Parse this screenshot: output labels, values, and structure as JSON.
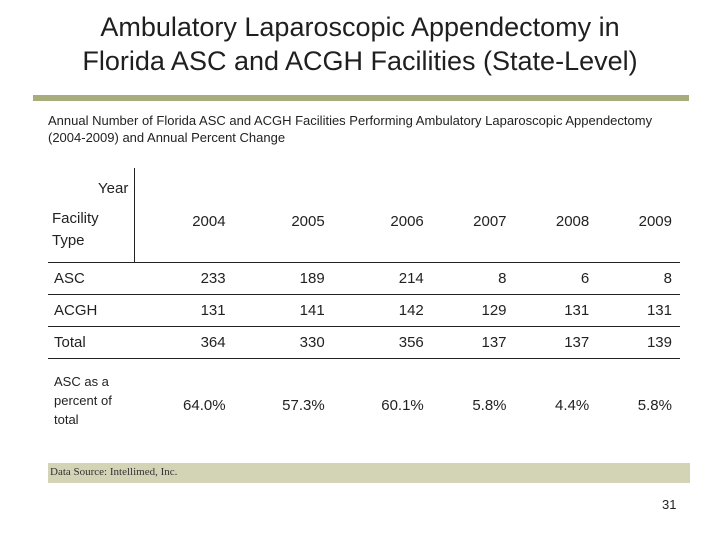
{
  "slide": {
    "title_line1": "Ambulatory Laparoscopic Appendectomy in",
    "title_line2": "Florida ASC and ACGH Facilities (State-Level)",
    "subtitle": "Annual Number of Florida ASC and ACGH Facilities Performing Ambulatory Laparoscopic Appendectomy (2004-2009) and Annual Percent Change",
    "source": "Data Source: Intellimed, Inc.",
    "page_number": "31",
    "colors": {
      "accent_bar": "#a9ad7c",
      "source_bar": "#d3d4b6"
    }
  },
  "table": {
    "header_year": "Year",
    "header_facility_line1": "Facility",
    "header_facility_line2": "Type",
    "years": [
      "2004",
      "2005",
      "2006",
      "2007",
      "2008",
      "2009"
    ],
    "rows": [
      {
        "label": "ASC",
        "values": [
          "233",
          "189",
          "214",
          "8",
          "6",
          "8"
        ]
      },
      {
        "label": "ACGH",
        "values": [
          "131",
          "141",
          "142",
          "129",
          "131",
          "131"
        ]
      },
      {
        "label": "Total",
        "values": [
          "364",
          "330",
          "356",
          "137",
          "137",
          "139"
        ]
      }
    ],
    "percent_row": {
      "label_line1": "ASC as a",
      "label_line2": "percent of",
      "label_line3": "total",
      "values": [
        "64.0%",
        "57.3%",
        "60.1%",
        "5.8%",
        "4.4%",
        "5.8%"
      ]
    }
  }
}
